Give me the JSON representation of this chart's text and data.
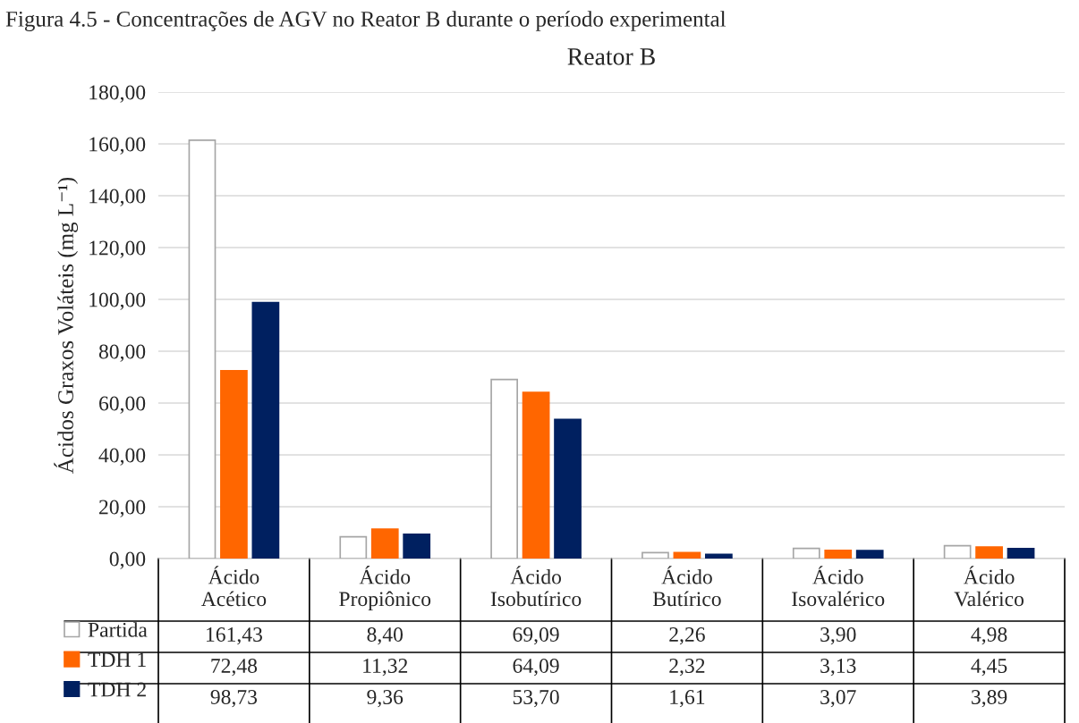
{
  "chart_data": {
    "type": "bar",
    "title": "Reator B",
    "ylabel": "Ácidos Graxos Voláteis (mg L⁻¹)",
    "annotations": [
      "Figura 4.5 - Concentrações de AGV no Reator B durante o período experimental"
    ],
    "categories": [
      "Ácido Acético",
      "Ácido Propiônico",
      "Ácido Isobutírico",
      "Ácido Butírico",
      "Ácido Isovalérico",
      "Ácido Valérico"
    ],
    "series": [
      {
        "name": "Partida",
        "color": "#ffffff",
        "values": [
          161.43,
          8.4,
          69.09,
          2.26,
          3.9,
          4.98
        ],
        "value_labels": [
          "161,43",
          "8,40",
          "69,09",
          "2,26",
          "3,90",
          "4,98"
        ]
      },
      {
        "name": "TDH 1",
        "color": "#ff6600",
        "values": [
          72.48,
          11.32,
          64.09,
          2.32,
          3.13,
          4.45
        ],
        "value_labels": [
          "72,48",
          "11,32",
          "64,09",
          "2,32",
          "3,13",
          "4,45"
        ]
      },
      {
        "name": "TDH 2",
        "color": "#002060",
        "values": [
          98.73,
          9.36,
          53.7,
          1.61,
          3.07,
          3.89
        ],
        "value_labels": [
          "98,73",
          "9,36",
          "53,70",
          "1,61",
          "3,07",
          "3,89"
        ]
      }
    ],
    "ylim": [
      0,
      180
    ],
    "yticks": [
      {
        "value": 0,
        "label": "0,00"
      },
      {
        "value": 20,
        "label": "20,00"
      },
      {
        "value": 40,
        "label": "40,00"
      },
      {
        "value": 60,
        "label": "60,00"
      },
      {
        "value": 80,
        "label": "80,00"
      },
      {
        "value": 100,
        "label": "100,00"
      },
      {
        "value": 120,
        "label": "120,00"
      },
      {
        "value": 140,
        "label": "140,00"
      },
      {
        "value": 160,
        "label": "160,00"
      },
      {
        "value": 180,
        "label": "180,00"
      }
    ],
    "grid": "y",
    "legend": "bottom left"
  }
}
